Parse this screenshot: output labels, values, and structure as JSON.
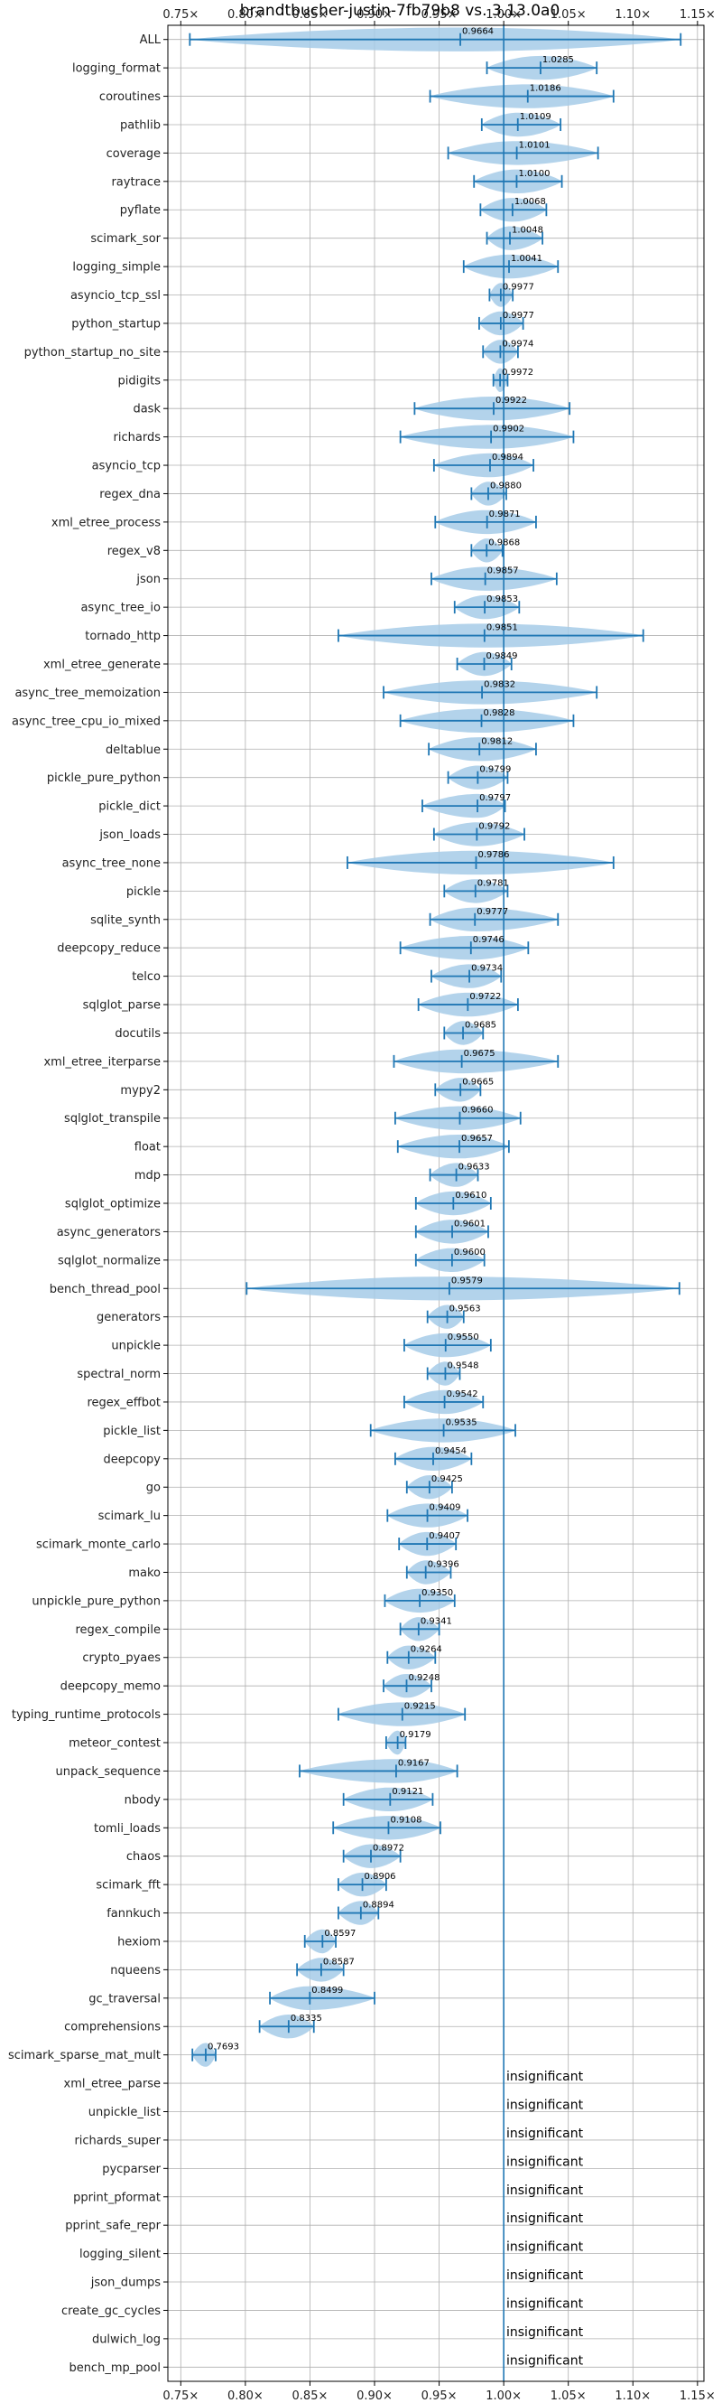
{
  "chart_data": {
    "type": "violin",
    "title": "brandtbucher-justin-7fb79b8 vs. 3.13.0a0",
    "xlabel": "",
    "ylabel": "",
    "xlim": [
      0.74,
      1.155
    ],
    "x_ticks": [
      0.75,
      0.8,
      0.85,
      0.9,
      0.95,
      1.0,
      1.05,
      1.1,
      1.15
    ],
    "x_tick_labels": [
      "0.75×",
      "0.80×",
      "0.85×",
      "0.90×",
      "0.95×",
      "1.00×",
      "1.05×",
      "1.10×",
      "1.15×"
    ],
    "reference_line": 1.0,
    "grid": true,
    "violin_color": "#a6cbe8",
    "line_color": "#1f77b4",
    "benchmarks": [
      {
        "name": "ALL",
        "value": 0.9664,
        "label": "0.9664",
        "min": 0.757,
        "max": 1.137
      },
      {
        "name": "logging_format",
        "value": 1.0285,
        "label": "1.0285",
        "min": 0.987,
        "max": 1.072
      },
      {
        "name": "coroutines",
        "value": 1.0186,
        "label": "1.0186",
        "min": 0.943,
        "max": 1.085
      },
      {
        "name": "pathlib",
        "value": 1.0109,
        "label": "1.0109",
        "min": 0.983,
        "max": 1.044
      },
      {
        "name": "coverage",
        "value": 1.0101,
        "label": "1.0101",
        "min": 0.957,
        "max": 1.073
      },
      {
        "name": "raytrace",
        "value": 1.01,
        "label": "1.0100",
        "min": 0.977,
        "max": 1.045
      },
      {
        "name": "pyflate",
        "value": 1.0068,
        "label": "1.0068",
        "min": 0.982,
        "max": 1.033
      },
      {
        "name": "scimark_sor",
        "value": 1.0048,
        "label": "1.0048",
        "min": 0.987,
        "max": 1.03
      },
      {
        "name": "logging_simple",
        "value": 1.0041,
        "label": "1.0041",
        "min": 0.969,
        "max": 1.042
      },
      {
        "name": "asyncio_tcp_ssl",
        "value": 0.9977,
        "label": "0.9977",
        "min": 0.989,
        "max": 1.007
      },
      {
        "name": "python_startup",
        "value": 0.9977,
        "label": "0.9977",
        "min": 0.981,
        "max": 1.015
      },
      {
        "name": "python_startup_no_site",
        "value": 0.9974,
        "label": "0.9974",
        "min": 0.984,
        "max": 1.011
      },
      {
        "name": "pidigits",
        "value": 0.9972,
        "label": "0.9972",
        "min": 0.992,
        "max": 1.003
      },
      {
        "name": "dask",
        "value": 0.9922,
        "label": "0.9922",
        "min": 0.931,
        "max": 1.051
      },
      {
        "name": "richards",
        "value": 0.9902,
        "label": "0.9902",
        "min": 0.92,
        "max": 1.054
      },
      {
        "name": "asyncio_tcp",
        "value": 0.9894,
        "label": "0.9894",
        "min": 0.946,
        "max": 1.023
      },
      {
        "name": "regex_dna",
        "value": 0.988,
        "label": "0.9880",
        "min": 0.975,
        "max": 1.002
      },
      {
        "name": "xml_etree_process",
        "value": 0.9871,
        "label": "0.9871",
        "min": 0.947,
        "max": 1.025
      },
      {
        "name": "regex_v8",
        "value": 0.9868,
        "label": "0.9868",
        "min": 0.975,
        "max": 0.999
      },
      {
        "name": "json",
        "value": 0.9857,
        "label": "0.9857",
        "min": 0.944,
        "max": 1.041
      },
      {
        "name": "async_tree_io",
        "value": 0.9853,
        "label": "0.9853",
        "min": 0.962,
        "max": 1.012
      },
      {
        "name": "tornado_http",
        "value": 0.9851,
        "label": "0.9851",
        "min": 0.872,
        "max": 1.108
      },
      {
        "name": "xml_etree_generate",
        "value": 0.9849,
        "label": "0.9849",
        "min": 0.964,
        "max": 1.006
      },
      {
        "name": "async_tree_memoization",
        "value": 0.9832,
        "label": "0.9832",
        "min": 0.907,
        "max": 1.072
      },
      {
        "name": "async_tree_cpu_io_mixed",
        "value": 0.9828,
        "label": "0.9828",
        "min": 0.92,
        "max": 1.054
      },
      {
        "name": "deltablue",
        "value": 0.9812,
        "label": "0.9812",
        "min": 0.942,
        "max": 1.025
      },
      {
        "name": "pickle_pure_python",
        "value": 0.9799,
        "label": "0.9799",
        "min": 0.957,
        "max": 1.003
      },
      {
        "name": "pickle_dict",
        "value": 0.9797,
        "label": "0.9797",
        "min": 0.937,
        "max": 1.001
      },
      {
        "name": "json_loads",
        "value": 0.9792,
        "label": "0.9792",
        "min": 0.946,
        "max": 1.016
      },
      {
        "name": "async_tree_none",
        "value": 0.9786,
        "label": "0.9786",
        "min": 0.879,
        "max": 1.085
      },
      {
        "name": "pickle",
        "value": 0.9781,
        "label": "0.9781",
        "min": 0.954,
        "max": 1.003
      },
      {
        "name": "sqlite_synth",
        "value": 0.9777,
        "label": "0.9777",
        "min": 0.943,
        "max": 1.042
      },
      {
        "name": "deepcopy_reduce",
        "value": 0.9746,
        "label": "0.9746",
        "min": 0.92,
        "max": 1.019
      },
      {
        "name": "telco",
        "value": 0.9734,
        "label": "0.9734",
        "min": 0.944,
        "max": 0.998
      },
      {
        "name": "sqlglot_parse",
        "value": 0.9722,
        "label": "0.9722",
        "min": 0.934,
        "max": 1.011
      },
      {
        "name": "docutils",
        "value": 0.9685,
        "label": "0.9685",
        "min": 0.954,
        "max": 0.984
      },
      {
        "name": "xml_etree_iterparse",
        "value": 0.9675,
        "label": "0.9675",
        "min": 0.915,
        "max": 1.042
      },
      {
        "name": "mypy2",
        "value": 0.9665,
        "label": "0.9665",
        "min": 0.947,
        "max": 0.982
      },
      {
        "name": "sqlglot_transpile",
        "value": 0.966,
        "label": "0.9660",
        "min": 0.916,
        "max": 1.013
      },
      {
        "name": "float",
        "value": 0.9657,
        "label": "0.9657",
        "min": 0.918,
        "max": 1.004
      },
      {
        "name": "mdp",
        "value": 0.9633,
        "label": "0.9633",
        "min": 0.943,
        "max": 0.98
      },
      {
        "name": "sqlglot_optimize",
        "value": 0.961,
        "label": "0.9610",
        "min": 0.932,
        "max": 0.99
      },
      {
        "name": "async_generators",
        "value": 0.9601,
        "label": "0.9601",
        "min": 0.932,
        "max": 0.988
      },
      {
        "name": "sqlglot_normalize",
        "value": 0.96,
        "label": "0.9600",
        "min": 0.932,
        "max": 0.985
      },
      {
        "name": "bench_thread_pool",
        "value": 0.9579,
        "label": "0.9579",
        "min": 0.801,
        "max": 1.136
      },
      {
        "name": "generators",
        "value": 0.9563,
        "label": "0.9563",
        "min": 0.941,
        "max": 0.969
      },
      {
        "name": "unpickle",
        "value": 0.955,
        "label": "0.9550",
        "min": 0.923,
        "max": 0.99
      },
      {
        "name": "spectral_norm",
        "value": 0.9548,
        "label": "0.9548",
        "min": 0.941,
        "max": 0.966
      },
      {
        "name": "regex_effbot",
        "value": 0.9542,
        "label": "0.9542",
        "min": 0.923,
        "max": 0.984
      },
      {
        "name": "pickle_list",
        "value": 0.9535,
        "label": "0.9535",
        "min": 0.897,
        "max": 1.009
      },
      {
        "name": "deepcopy",
        "value": 0.9454,
        "label": "0.9454",
        "min": 0.916,
        "max": 0.975
      },
      {
        "name": "go",
        "value": 0.9425,
        "label": "0.9425",
        "min": 0.925,
        "max": 0.96
      },
      {
        "name": "scimark_lu",
        "value": 0.9409,
        "label": "0.9409",
        "min": 0.91,
        "max": 0.972
      },
      {
        "name": "scimark_monte_carlo",
        "value": 0.9407,
        "label": "0.9407",
        "min": 0.919,
        "max": 0.963
      },
      {
        "name": "mako",
        "value": 0.9396,
        "label": "0.9396",
        "min": 0.925,
        "max": 0.959
      },
      {
        "name": "unpickle_pure_python",
        "value": 0.935,
        "label": "0.9350",
        "min": 0.908,
        "max": 0.962
      },
      {
        "name": "regex_compile",
        "value": 0.9341,
        "label": "0.9341",
        "min": 0.92,
        "max": 0.95
      },
      {
        "name": "crypto_pyaes",
        "value": 0.9264,
        "label": "0.9264",
        "min": 0.91,
        "max": 0.947
      },
      {
        "name": "deepcopy_memo",
        "value": 0.9248,
        "label": "0.9248",
        "min": 0.907,
        "max": 0.944
      },
      {
        "name": "typing_runtime_protocols",
        "value": 0.9215,
        "label": "0.9215",
        "min": 0.872,
        "max": 0.97
      },
      {
        "name": "meteor_contest",
        "value": 0.9179,
        "label": "0.9179",
        "min": 0.909,
        "max": 0.924
      },
      {
        "name": "unpack_sequence",
        "value": 0.9167,
        "label": "0.9167",
        "min": 0.842,
        "max": 0.964
      },
      {
        "name": "nbody",
        "value": 0.9121,
        "label": "0.9121",
        "min": 0.876,
        "max": 0.945
      },
      {
        "name": "tomli_loads",
        "value": 0.9108,
        "label": "0.9108",
        "min": 0.868,
        "max": 0.951
      },
      {
        "name": "chaos",
        "value": 0.8972,
        "label": "0.8972",
        "min": 0.876,
        "max": 0.92
      },
      {
        "name": "scimark_fft",
        "value": 0.8906,
        "label": "0.8906",
        "min": 0.872,
        "max": 0.909
      },
      {
        "name": "fannkuch",
        "value": 0.8894,
        "label": "0.8894",
        "min": 0.872,
        "max": 0.903
      },
      {
        "name": "hexiom",
        "value": 0.8597,
        "label": "0.8597",
        "min": 0.846,
        "max": 0.87
      },
      {
        "name": "nqueens",
        "value": 0.8587,
        "label": "0.8587",
        "min": 0.84,
        "max": 0.876
      },
      {
        "name": "gc_traversal",
        "value": 0.8499,
        "label": "0.8499",
        "min": 0.819,
        "max": 0.9
      },
      {
        "name": "comprehensions",
        "value": 0.8335,
        "label": "0.8335",
        "min": 0.811,
        "max": 0.853
      },
      {
        "name": "scimark_sparse_mat_mult",
        "value": 0.7693,
        "label": "0.7693",
        "min": 0.759,
        "max": 0.777
      },
      {
        "name": "xml_etree_parse",
        "label": "insignificant"
      },
      {
        "name": "unpickle_list",
        "label": "insignificant"
      },
      {
        "name": "richards_super",
        "label": "insignificant"
      },
      {
        "name": "pycparser",
        "label": "insignificant"
      },
      {
        "name": "pprint_pformat",
        "label": "insignificant"
      },
      {
        "name": "pprint_safe_repr",
        "label": "insignificant"
      },
      {
        "name": "logging_silent",
        "label": "insignificant"
      },
      {
        "name": "json_dumps",
        "label": "insignificant"
      },
      {
        "name": "create_gc_cycles",
        "label": "insignificant"
      },
      {
        "name": "dulwich_log",
        "label": "insignificant"
      },
      {
        "name": "bench_mp_pool",
        "label": "insignificant"
      }
    ]
  }
}
